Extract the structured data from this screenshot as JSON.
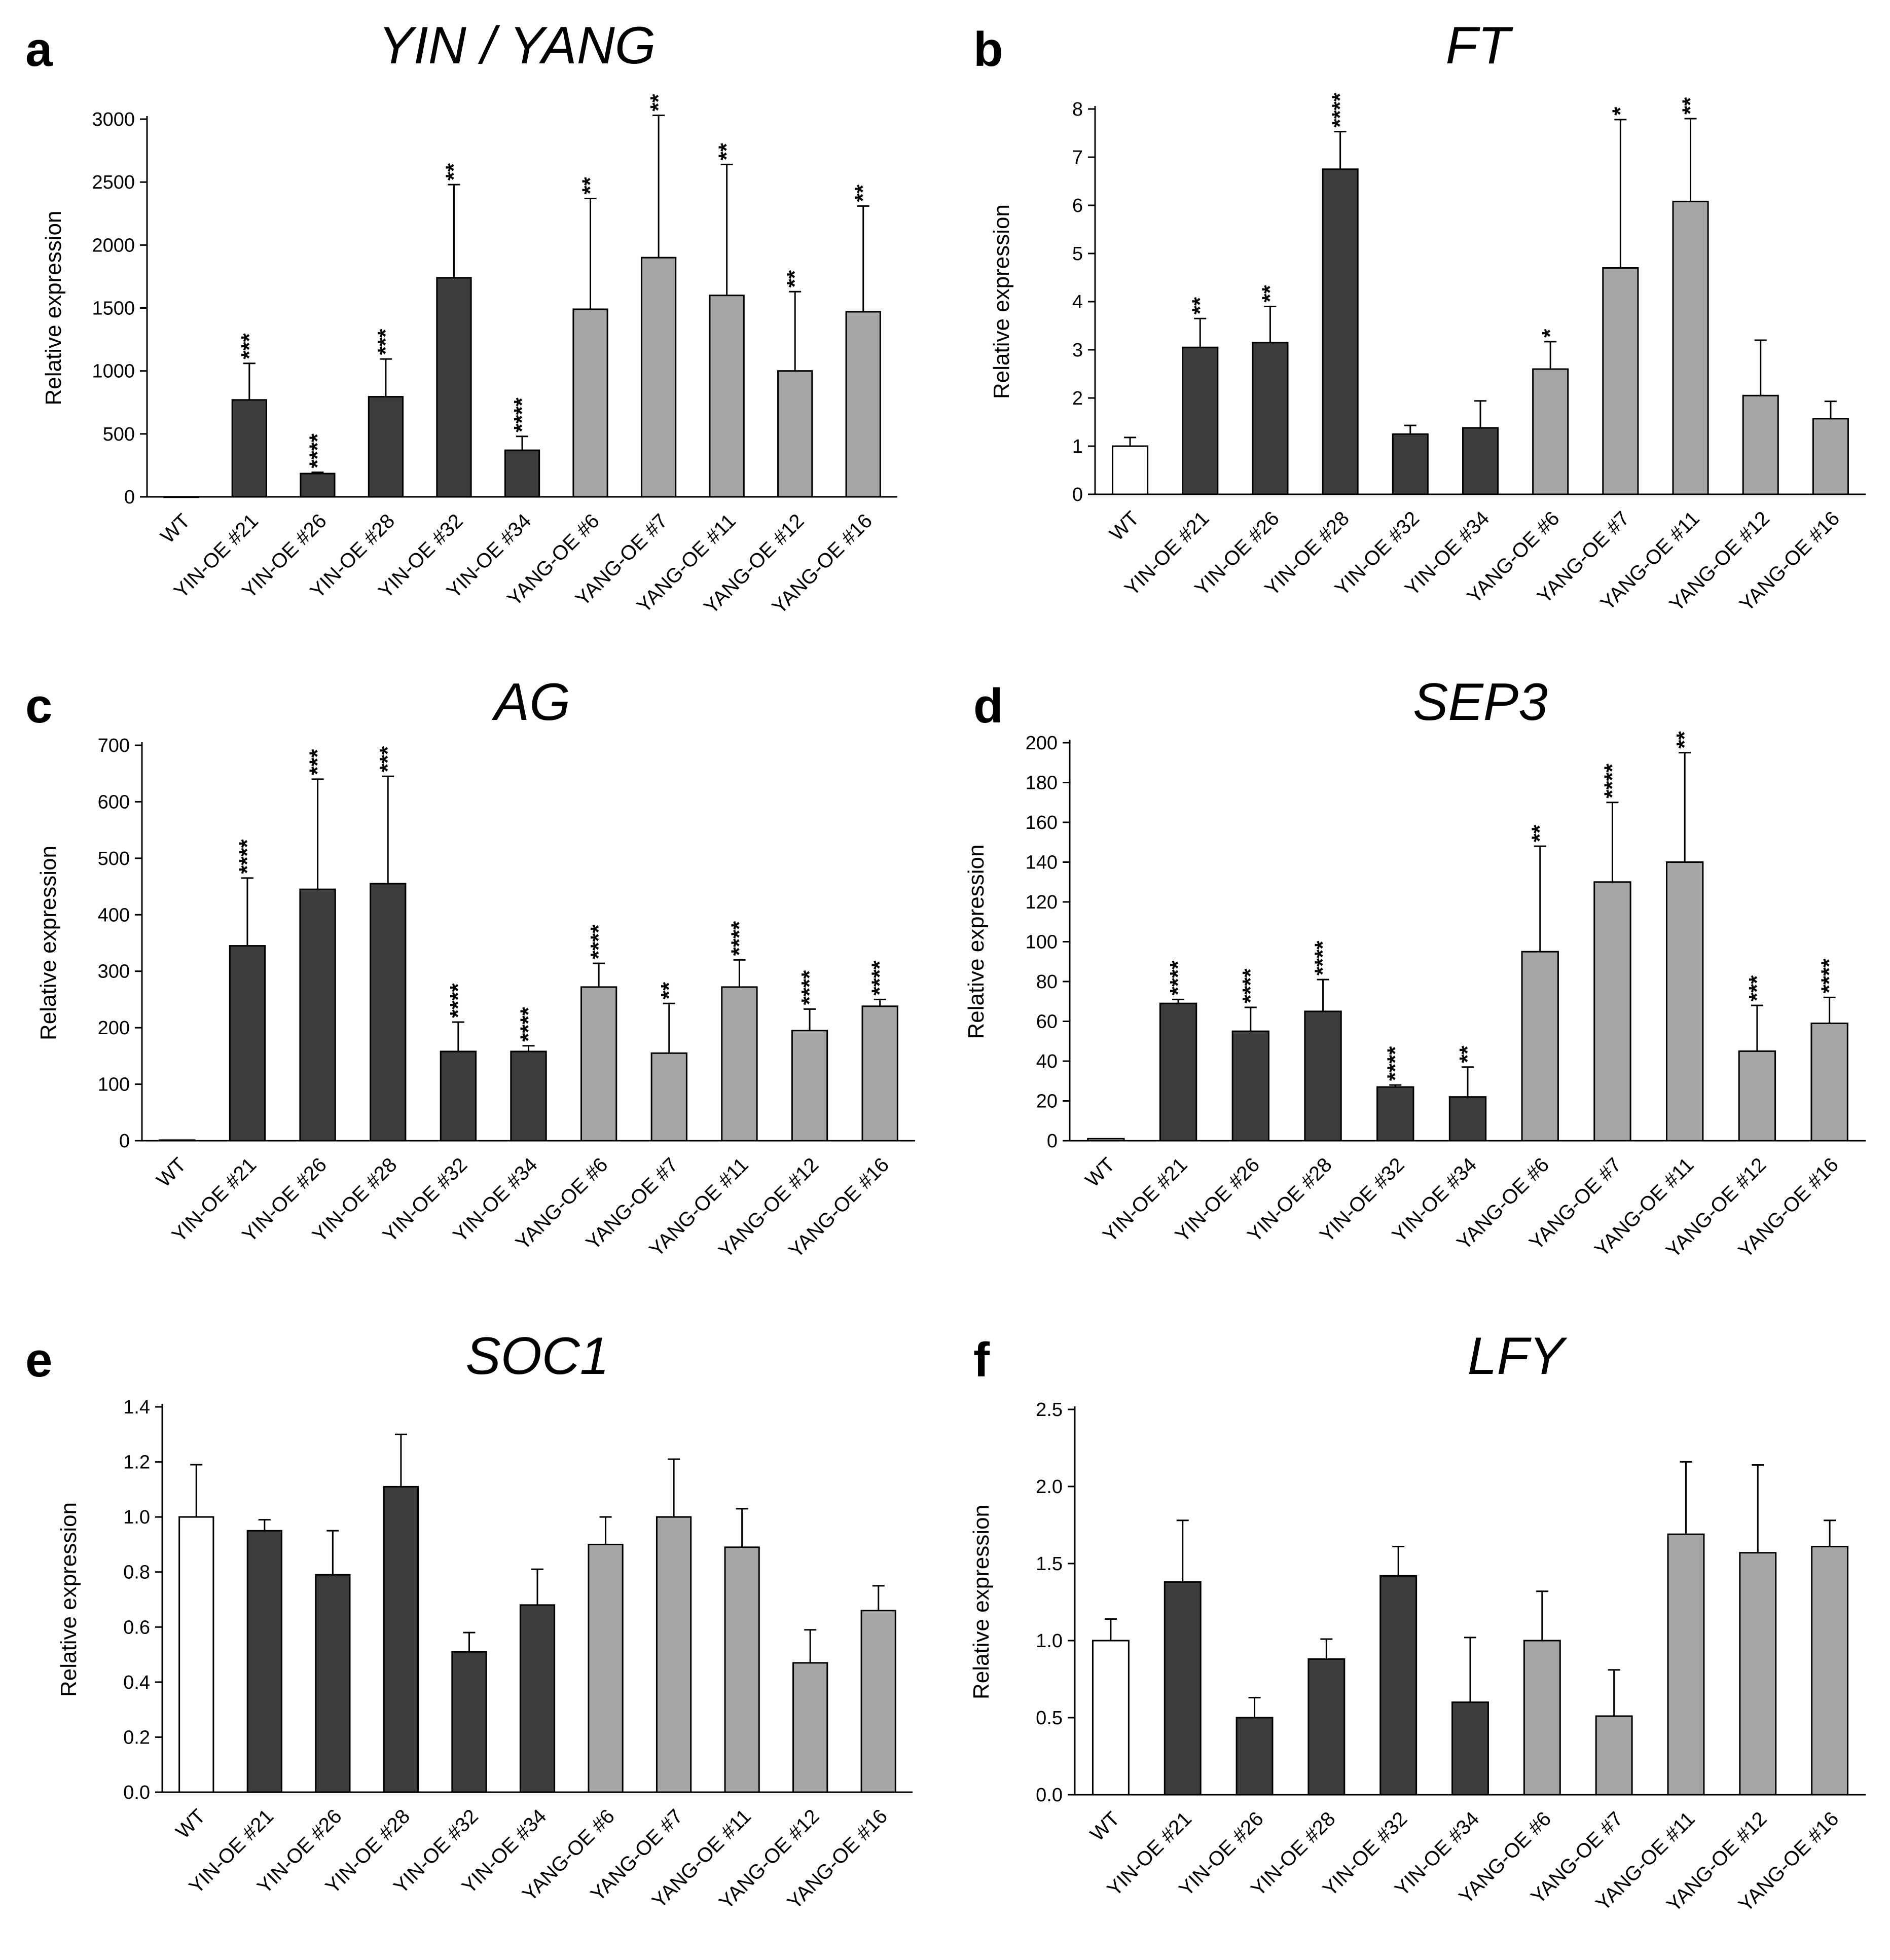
{
  "colors": {
    "wt": "#ffffff",
    "yin": "#3c3c3c",
    "yang": "#a6a6a6",
    "outline": "#000000"
  },
  "chart_data": [
    {
      "type": "bar",
      "panel": "a",
      "title": "YIN / YANG",
      "ylabel": "Relative expression",
      "xlabel": "",
      "ylim": [
        0,
        3000
      ],
      "yticks": [
        0,
        500,
        1000,
        1500,
        2000,
        2500,
        3000
      ],
      "ytick_labels": [
        "0",
        "500",
        "1000",
        "1500",
        "2000",
        "2500",
        "3000"
      ],
      "categories": [
        "WT",
        "YIN-OE #21",
        "YIN-OE #26",
        "YIN-OE #28",
        "YIN-OE #32",
        "YIN-OE #34",
        "YANG-OE #6",
        "YANG-OE #7",
        "YANG-OE #11",
        "YANG-OE #12",
        "YANG-OE #16"
      ],
      "groups": [
        "wt",
        "yin",
        "yin",
        "yin",
        "yin",
        "yin",
        "yang",
        "yang",
        "yang",
        "yang",
        "yang"
      ],
      "values": [
        1,
        770,
        185,
        795,
        1740,
        370,
        1490,
        1900,
        1600,
        1000,
        1470
      ],
      "errors": [
        0,
        290,
        10,
        300,
        740,
        110,
        880,
        1130,
        1040,
        630,
        840
      ],
      "significance": [
        "",
        "***",
        "****",
        "***",
        "**",
        "****",
        "**",
        "**",
        "**",
        "**",
        "**"
      ]
    },
    {
      "type": "bar",
      "panel": "b",
      "title": "FT",
      "ylabel": "Relative expression",
      "xlabel": "",
      "ylim": [
        0,
        8
      ],
      "yticks": [
        0,
        1,
        2,
        3,
        4,
        5,
        6,
        7,
        8
      ],
      "ytick_labels": [
        "0",
        "1",
        "2",
        "3",
        "4",
        "5",
        "6",
        "7",
        "8"
      ],
      "categories": [
        "WT",
        "YIN-OE #21",
        "YIN-OE #26",
        "YIN-OE #28",
        "YIN-OE #32",
        "YIN-OE #34",
        "YANG-OE #6",
        "YANG-OE #7",
        "YANG-OE #11",
        "YANG-OE #12",
        "YANG-OE #16"
      ],
      "groups": [
        "wt",
        "yin",
        "yin",
        "yin",
        "yin",
        "yin",
        "yang",
        "yang",
        "yang",
        "yang",
        "yang"
      ],
      "values": [
        1.0,
        3.05,
        3.15,
        6.75,
        1.25,
        1.38,
        2.6,
        4.7,
        6.08,
        2.05,
        1.57
      ],
      "errors": [
        0.18,
        0.6,
        0.75,
        0.78,
        0.18,
        0.56,
        0.57,
        3.08,
        1.72,
        1.15,
        0.36
      ],
      "significance": [
        "",
        "**",
        "**",
        "****",
        "",
        "",
        "*",
        "*",
        "**",
        "",
        ""
      ]
    },
    {
      "type": "bar",
      "panel": "c",
      "title": "AG",
      "ylabel": "Relative expression",
      "xlabel": "",
      "ylim": [
        0,
        700
      ],
      "yticks": [
        0,
        100,
        200,
        300,
        400,
        500,
        600,
        700
      ],
      "ytick_labels": [
        "0",
        "100",
        "200",
        "300",
        "400",
        "500",
        "600",
        "700"
      ],
      "categories": [
        "WT",
        "YIN-OE #21",
        "YIN-OE #26",
        "YIN-OE #28",
        "YIN-OE #32",
        "YIN-OE #34",
        "YANG-OE #6",
        "YANG-OE #7",
        "YANG-OE #11",
        "YANG-OE #12",
        "YANG-OE #16"
      ],
      "groups": [
        "wt",
        "yin",
        "yin",
        "yin",
        "yin",
        "yin",
        "yang",
        "yang",
        "yang",
        "yang",
        "yang"
      ],
      "values": [
        1,
        345,
        445,
        455,
        158,
        158,
        272,
        155,
        272,
        195,
        238
      ],
      "errors": [
        0,
        120,
        195,
        190,
        52,
        10,
        42,
        88,
        48,
        38,
        12
      ],
      "significance": [
        "",
        "****",
        "***",
        "***",
        "****",
        "****",
        "****",
        "**",
        "****",
        "****",
        "****"
      ]
    },
    {
      "type": "bar",
      "panel": "d",
      "title": "SEP3",
      "ylabel": "Relative expression",
      "xlabel": "",
      "ylim": [
        0,
        200
      ],
      "yticks": [
        0,
        20,
        40,
        60,
        80,
        100,
        120,
        140,
        160,
        180,
        200
      ],
      "ytick_labels": [
        "0",
        "20",
        "40",
        "60",
        "80",
        "100",
        "120",
        "140",
        "160",
        "180",
        "200"
      ],
      "categories": [
        "WT",
        "YIN-OE #21",
        "YIN-OE #26",
        "YIN-OE #28",
        "YIN-OE #32",
        "YIN-OE #34",
        "YANG-OE #6",
        "YANG-OE #7",
        "YANG-OE #11",
        "YANG-OE #12",
        "YANG-OE #16"
      ],
      "groups": [
        "wt",
        "yin",
        "yin",
        "yin",
        "yin",
        "yin",
        "yang",
        "yang",
        "yang",
        "yang",
        "yang"
      ],
      "values": [
        1,
        69,
        55,
        65,
        27,
        22,
        95,
        130,
        140,
        45,
        59
      ],
      "errors": [
        0,
        2,
        12,
        16,
        1,
        15,
        53,
        40,
        55,
        23,
        13
      ],
      "significance": [
        "",
        "****",
        "****",
        "****",
        "****",
        "**",
        "**",
        "****",
        "**",
        "***",
        "****"
      ]
    },
    {
      "type": "bar",
      "panel": "e",
      "title": "SOC1",
      "ylabel": "Relative expression",
      "xlabel": "",
      "ylim": [
        0,
        1.4
      ],
      "yticks": [
        0,
        0.2,
        0.4,
        0.6,
        0.8,
        1.0,
        1.2,
        1.4
      ],
      "ytick_labels": [
        "0.0",
        "0.2",
        "0.4",
        "0.6",
        "0.8",
        "1.0",
        "1.2",
        "1.4"
      ],
      "categories": [
        "WT",
        "YIN-OE #21",
        "YIN-OE #26",
        "YIN-OE #28",
        "YIN-OE #32",
        "YIN-OE #34",
        "YANG-OE #6",
        "YANG-OE #7",
        "YANG-OE #11",
        "YANG-OE #12",
        "YANG-OE #16"
      ],
      "groups": [
        "wt",
        "yin",
        "yin",
        "yin",
        "yin",
        "yin",
        "yang",
        "yang",
        "yang",
        "yang",
        "yang"
      ],
      "values": [
        1.0,
        0.95,
        0.79,
        1.11,
        0.51,
        0.68,
        0.9,
        1.0,
        0.89,
        0.47,
        0.66
      ],
      "errors": [
        0.19,
        0.04,
        0.16,
        0.19,
        0.07,
        0.13,
        0.1,
        0.21,
        0.14,
        0.12,
        0.09
      ],
      "significance": [
        "",
        "",
        "",
        "",
        "",
        "",
        "",
        "",
        "",
        "",
        ""
      ]
    },
    {
      "type": "bar",
      "panel": "f",
      "title": "LFY",
      "ylabel": "Relative expression",
      "xlabel": "",
      "ylim": [
        0,
        2.5
      ],
      "yticks": [
        0,
        0.5,
        1.0,
        1.5,
        2.0,
        2.5
      ],
      "ytick_labels": [
        "0.0",
        "0.5",
        "1.0",
        "1.5",
        "2.0",
        "2.5"
      ],
      "categories": [
        "WT",
        "YIN-OE #21",
        "YIN-OE #26",
        "YIN-OE #28",
        "YIN-OE #32",
        "YIN-OE #34",
        "YANG-OE #6",
        "YANG-OE #7",
        "YANG-OE #11",
        "YANG-OE #12",
        "YANG-OE #16"
      ],
      "groups": [
        "wt",
        "yin",
        "yin",
        "yin",
        "yin",
        "yin",
        "yang",
        "yang",
        "yang",
        "yang",
        "yang"
      ],
      "values": [
        1.0,
        1.38,
        0.5,
        0.88,
        1.42,
        0.6,
        1.0,
        0.51,
        1.69,
        1.57,
        1.61
      ],
      "errors": [
        0.14,
        0.4,
        0.13,
        0.13,
        0.19,
        0.42,
        0.32,
        0.3,
        0.47,
        0.57,
        0.17
      ],
      "significance": [
        "",
        "",
        "",
        "",
        "",
        "",
        "",
        "",
        "",
        "",
        ""
      ]
    }
  ]
}
